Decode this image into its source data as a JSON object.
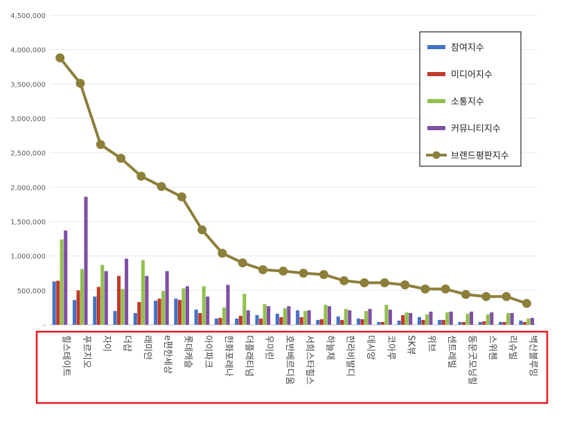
{
  "chart_data": {
    "type": "bar",
    "title": "",
    "xlabel": "",
    "ylabel": "",
    "ylim": [
      0,
      4500000
    ],
    "yticks": [
      "-",
      "500,000",
      "1,000,000",
      "1,500,000",
      "2,000,000",
      "2,500,000",
      "3,000,000",
      "3,500,000",
      "4,000,000",
      "4,500,000"
    ],
    "grid": true,
    "legend_position": "top-right",
    "categories": [
      "힐스테이트",
      "푸르지오",
      "자이",
      "더샵",
      "래미안",
      "e편한세상",
      "롯데캐슬",
      "아이파크",
      "한화포레나",
      "더플래티넘",
      "우미린",
      "호반베르디움",
      "서희스타힐스",
      "하늘채",
      "한라비발디",
      "데시앙",
      "코아루",
      "SK뷰",
      "위브",
      "센트레빌",
      "동문굿모닝힐",
      "스위첸",
      "리슈빌",
      "벽산블루밍"
    ],
    "series": [
      {
        "name": "참여지수",
        "color": "#4472c4",
        "kind": "bar",
        "values": [
          630000,
          360000,
          410000,
          200000,
          170000,
          350000,
          380000,
          220000,
          90000,
          90000,
          140000,
          160000,
          210000,
          70000,
          120000,
          90000,
          40000,
          60000,
          110000,
          70000,
          40000,
          40000,
          40000,
          60000
        ]
      },
      {
        "name": "미디어지수",
        "color": "#c0392b",
        "kind": "bar",
        "values": [
          640000,
          500000,
          550000,
          710000,
          330000,
          380000,
          360000,
          170000,
          100000,
          130000,
          90000,
          110000,
          110000,
          80000,
          70000,
          80000,
          40000,
          140000,
          70000,
          70000,
          40000,
          50000,
          40000,
          40000
        ]
      },
      {
        "name": "소통지수",
        "color": "#92c04f",
        "kind": "bar",
        "values": [
          1240000,
          810000,
          870000,
          520000,
          940000,
          490000,
          530000,
          560000,
          250000,
          450000,
          300000,
          240000,
          200000,
          290000,
          230000,
          200000,
          290000,
          180000,
          150000,
          180000,
          160000,
          150000,
          170000,
          90000
        ]
      },
      {
        "name": "커뮤니티지수",
        "color": "#7e4fa3",
        "kind": "bar",
        "values": [
          1370000,
          1860000,
          780000,
          960000,
          710000,
          780000,
          560000,
          410000,
          580000,
          210000,
          270000,
          270000,
          210000,
          270000,
          210000,
          230000,
          220000,
          170000,
          190000,
          190000,
          190000,
          180000,
          170000,
          100000
        ]
      },
      {
        "name": "브랜드평판지수",
        "color": "#8c7f3a",
        "kind": "line",
        "values": [
          3880000,
          3510000,
          2620000,
          2420000,
          2160000,
          2010000,
          1860000,
          1380000,
          1040000,
          900000,
          800000,
          780000,
          750000,
          730000,
          640000,
          610000,
          610000,
          580000,
          520000,
          520000,
          440000,
          410000,
          410000,
          310000
        ]
      }
    ]
  }
}
